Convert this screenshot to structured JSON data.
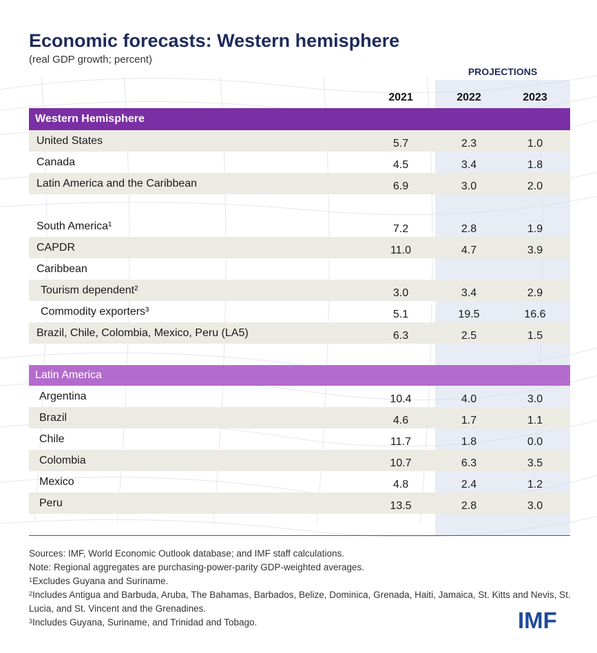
{
  "title": "Economic forecasts: Western hemisphere",
  "subtitle": "(real GDP growth; percent)",
  "projections_label": "PROJECTIONS",
  "chart_data": {
    "type": "table",
    "columns": [
      "2021",
      "2022",
      "2023"
    ],
    "sections": [
      {
        "name": "Western Hemisphere",
        "rows": [
          {
            "label": "United States",
            "values": [
              "5.7",
              "2.3",
              "1.0"
            ]
          },
          {
            "label": "Canada",
            "values": [
              "4.5",
              "3.4",
              "1.8"
            ]
          },
          {
            "label": "Latin America and the Caribbean",
            "values": [
              "6.9",
              "3.0",
              "2.0"
            ]
          },
          {
            "label": "South America¹",
            "values": [
              "7.2",
              "2.8",
              "1.9"
            ]
          },
          {
            "label": "CAPDR",
            "values": [
              "11.0",
              "4.7",
              "3.9"
            ]
          },
          {
            "label": "Caribbean",
            "values": [
              "",
              "",
              ""
            ]
          },
          {
            "label": "Tourism dependent²",
            "values": [
              "3.0",
              "3.4",
              "2.9"
            ]
          },
          {
            "label": "Commodity exporters³",
            "values": [
              "5.1",
              "19.5",
              "16.6"
            ]
          },
          {
            "label": "Brazil, Chile, Colombia, Mexico, Peru (LA5)",
            "values": [
              "6.3",
              "2.5",
              "1.5"
            ]
          }
        ]
      },
      {
        "name": "Latin America",
        "rows": [
          {
            "label": "Argentina",
            "values": [
              "10.4",
              "4.0",
              "3.0"
            ]
          },
          {
            "label": "Brazil",
            "values": [
              "4.6",
              "1.7",
              "1.1"
            ]
          },
          {
            "label": "Chile",
            "values": [
              "11.7",
              "1.8",
              "0.0"
            ]
          },
          {
            "label": "Colombia",
            "values": [
              "10.7",
              "6.3",
              "3.5"
            ]
          },
          {
            "label": "Mexico",
            "values": [
              "4.8",
              "2.4",
              "1.2"
            ]
          },
          {
            "label": "Peru",
            "values": [
              "13.5",
              "2.8",
              "3.0"
            ]
          }
        ]
      }
    ]
  },
  "notes": {
    "sources": "Sources: IMF, World Economic Outlook database; and IMF staff calculations.",
    "note": "Note: Regional aggregates are purchasing-power-parity GDP-weighted averages.",
    "fn1_mark": "1",
    "fn1": "Excludes Guyana and Suriname.",
    "fn2_mark": "2",
    "fn2": "Includes Antigua and Barbuda, Aruba, The Bahamas, Barbados, Belize, Dominica, Grenada, Haiti, Jamaica, St. Kitts and Nevis, St. Lucia, and St. Vincent and the Grenadines.",
    "fn3_mark": "3",
    "fn3": "Includes Guyana, Suriname, and Trinidad and Tobago."
  },
  "logo_text": "IMF",
  "colors": {
    "title": "#1f2a5c",
    "section_primary": "#7a2fa4",
    "section_secondary": "#b36ccd",
    "row_shade": "#ecebe3",
    "projection_band": "#d5ddeb",
    "logo": "#1f4a9c"
  }
}
